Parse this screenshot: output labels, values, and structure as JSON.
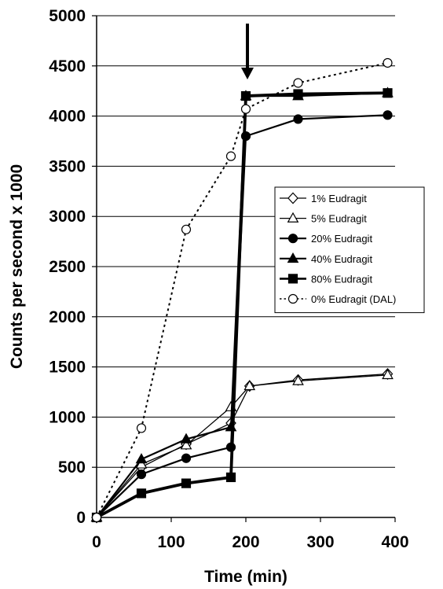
{
  "chart_data": {
    "type": "line",
    "xlabel": "Time (min)",
    "ylabel": "Counts per second x 1000",
    "xlim": [
      0,
      400
    ],
    "ylim": [
      0,
      5000
    ],
    "xticks": [
      0,
      100,
      200,
      300,
      400
    ],
    "yticks": [
      0,
      500,
      1000,
      1500,
      2000,
      2500,
      3000,
      3500,
      4000,
      4500,
      5000
    ],
    "grid": "horizontal",
    "legend_position": "right",
    "annotation": {
      "type": "arrow",
      "x": 200,
      "description": "downward arrow above x = 200"
    },
    "series": [
      {
        "name": "1% Eudragit",
        "marker": "diamond-open",
        "line": "solid",
        "weight": "thin",
        "x": [
          0,
          60,
          120,
          180,
          205,
          270,
          390
        ],
        "y": [
          0,
          500,
          730,
          940,
          1310,
          1370,
          1430
        ]
      },
      {
        "name": "5% Eudragit",
        "marker": "triangle-open",
        "line": "solid",
        "weight": "thin",
        "x": [
          0,
          60,
          120,
          180,
          205,
          270,
          390
        ],
        "y": [
          0,
          530,
          720,
          1100,
          1310,
          1360,
          1420
        ]
      },
      {
        "name": "20% Eudragit",
        "marker": "circle-filled",
        "line": "solid",
        "weight": "medium",
        "x": [
          0,
          60,
          120,
          180,
          200,
          270,
          390
        ],
        "y": [
          0,
          430,
          590,
          700,
          3800,
          3970,
          4010
        ]
      },
      {
        "name": "40% Eudragit",
        "marker": "triangle-filled",
        "line": "solid",
        "weight": "medium",
        "x": [
          0,
          60,
          120,
          180,
          200,
          270,
          390
        ],
        "y": [
          0,
          580,
          780,
          900,
          4200,
          4200,
          4230
        ]
      },
      {
        "name": "80% Eudragit",
        "marker": "square-filled",
        "line": "solid",
        "weight": "thick",
        "x": [
          0,
          60,
          120,
          180,
          200,
          270,
          390
        ],
        "y": [
          0,
          240,
          340,
          400,
          4200,
          4220,
          4230
        ]
      },
      {
        "name": "0% Eudragit (DAL)",
        "marker": "circle-open",
        "line": "dotted",
        "weight": "thin",
        "x": [
          0,
          60,
          120,
          180,
          200,
          270,
          390
        ],
        "y": [
          0,
          890,
          2870,
          3600,
          4070,
          4330,
          4530
        ]
      }
    ]
  },
  "colors": {
    "ink": "#000000",
    "background": "#ffffff",
    "grid": "#000000"
  }
}
